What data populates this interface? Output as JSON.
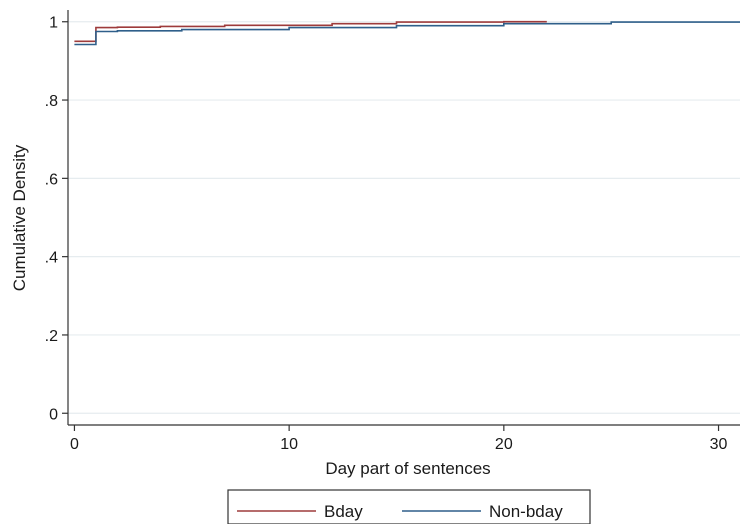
{
  "chart_data": {
    "type": "line",
    "step": true,
    "xlabel": "Day part of sentences",
    "ylabel": "Cumulative Density",
    "xlim": [
      -0.3,
      31
    ],
    "ylim": [
      -0.03,
      1.03
    ],
    "x_ticks": [
      0,
      10,
      20,
      30
    ],
    "x_tick_labels": [
      "0",
      "10",
      "20",
      "30"
    ],
    "y_ticks": [
      0,
      0.2,
      0.4,
      0.6,
      0.8,
      1
    ],
    "y_tick_labels": [
      "0",
      ".2",
      ".4",
      ".6",
      ".8",
      "1"
    ],
    "grid": true,
    "legend_position": "bottom",
    "series": [
      {
        "name": "Bday",
        "color": "#9e3b3b",
        "x": [
          0,
          1,
          2,
          4,
          7,
          12,
          15,
          20,
          22
        ],
        "y": [
          0.95,
          0.985,
          0.986,
          0.988,
          0.991,
          0.995,
          0.999,
          1.0,
          1.0
        ]
      },
      {
        "name": "Non-bday",
        "color": "#2f5f8a",
        "x": [
          0,
          1,
          2,
          5,
          10,
          15,
          20,
          25,
          31
        ],
        "y": [
          0.942,
          0.975,
          0.977,
          0.98,
          0.985,
          0.99,
          0.995,
          0.999,
          1.0
        ]
      }
    ]
  }
}
